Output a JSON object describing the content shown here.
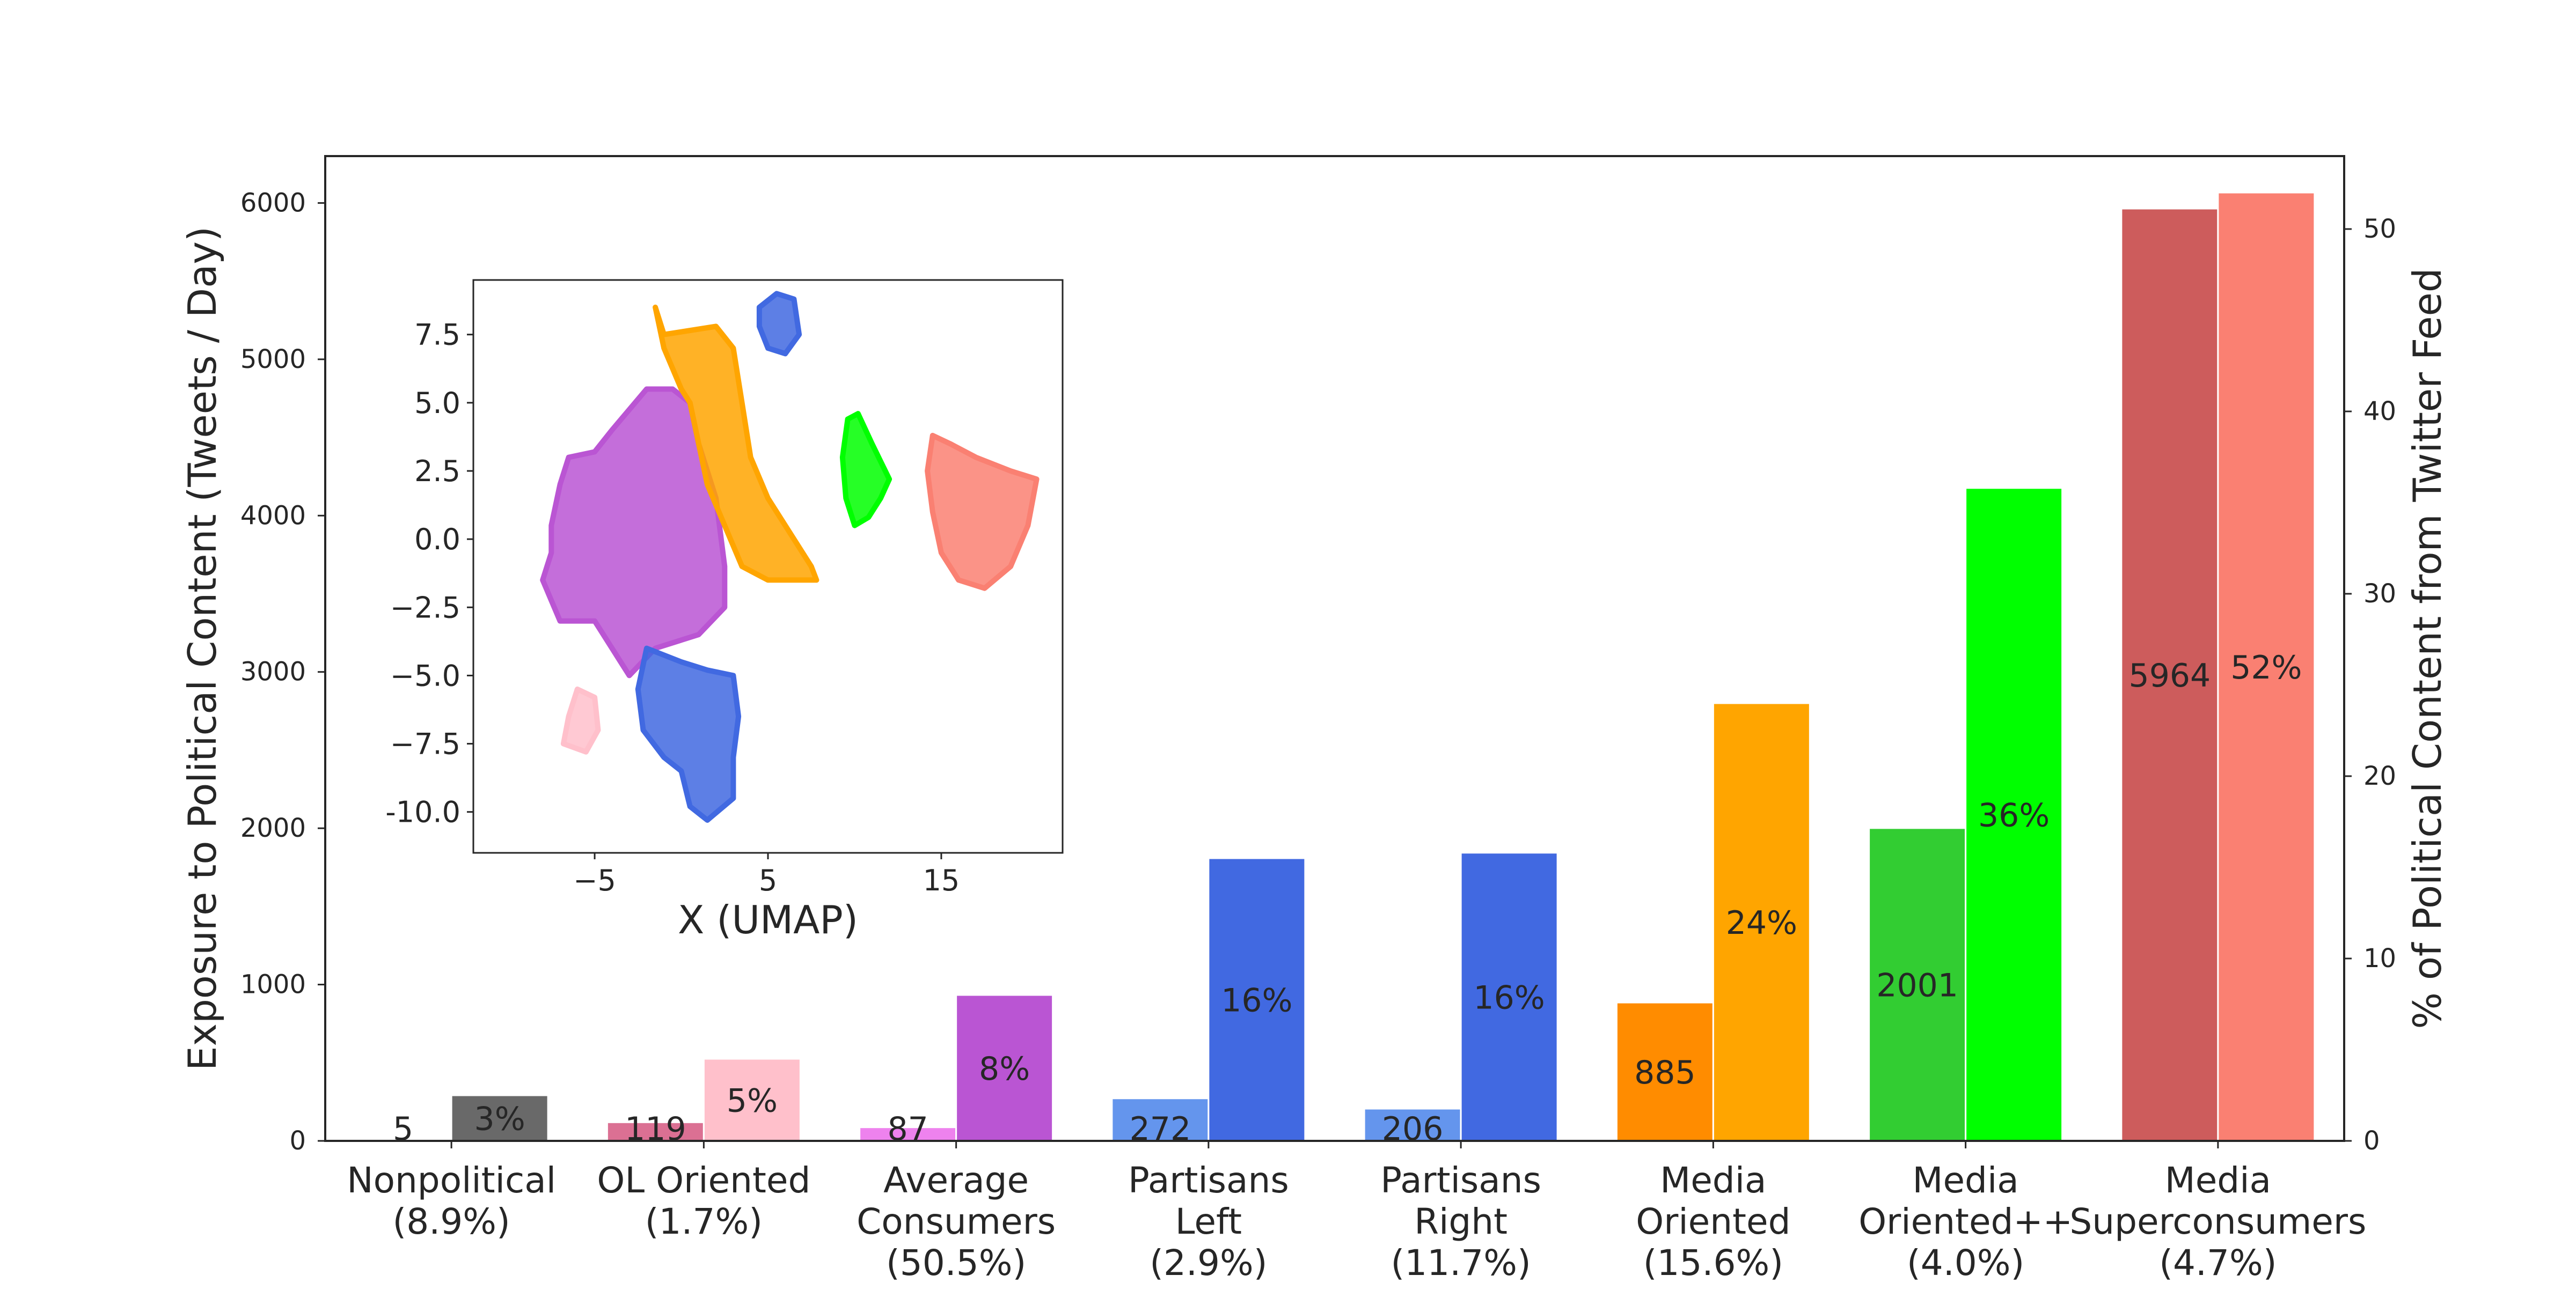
{
  "chart_data": [
    {
      "type": "bar",
      "categories": [
        "Nonpolitical\n(8.9%)",
        "OL Oriented\n(1.7%)",
        "Average\nConsumers\n(50.5%)",
        "Partisans\nLeft\n(2.9%)",
        "Partisans\nRight\n(11.7%)",
        "Media\nOriented\n(15.6%)",
        "Media\nOriented++\n(4.0%)",
        "Media\nSuperconsumers\n(4.7%)"
      ],
      "ylabel": "Exposure to Political Content (Tweets / Day)",
      "y2label": "% of Political Content from Twitter Feed",
      "ylim": [
        0,
        6300
      ],
      "y2lim": [
        0,
        54
      ],
      "yticks": [
        "0",
        "1000",
        "2000",
        "3000",
        "4000",
        "5000",
        "6000"
      ],
      "y2ticks": [
        "0",
        "10",
        "20",
        "30",
        "40",
        "50"
      ],
      "series": [
        {
          "axis": "left",
          "values": [
            5,
            119,
            87,
            272,
            206,
            885,
            2001,
            5964
          ],
          "labels": [
            "5",
            "119",
            "87",
            "272",
            "206",
            "885",
            "2001",
            "5964"
          ],
          "colors": [
            "#808080",
            "#db7093",
            "#ee82ee",
            "#6495ed",
            "#6495ed",
            "#ff8c00",
            "#32cd32",
            "#cd5c5c"
          ]
        },
        {
          "axis": "right",
          "values": [
            2.5,
            4.5,
            8,
            15.5,
            15.8,
            24,
            35.8,
            52
          ],
          "labels": [
            "3%",
            "5%",
            "8%",
            "16%",
            "16%",
            "24%",
            "36%",
            "52%"
          ],
          "colors": [
            "#696969",
            "#ffc0cb",
            "#ba55d3",
            "#4169e1",
            "#4169e1",
            "#ffa500",
            "#00ff00",
            "#fa8072"
          ]
        }
      ],
      "grid": false,
      "legend": "none"
    },
    {
      "type": "scatter",
      "xlabel": "X (UMAP)",
      "ylabel": "",
      "xlim": [
        -12,
        22
      ],
      "ylim": [
        -11.5,
        9.5
      ],
      "xticks": [
        "−5",
        "5",
        "15"
      ],
      "yticks": [
        "7.5",
        "5.0",
        "2.5",
        "0.0",
        "−2.5",
        "−5.0",
        "−7.5",
        "-10.0"
      ],
      "clusters": [
        {
          "color": "#ba55d3",
          "shape": [
            [
              -7.5,
              0.5
            ],
            [
              -7,
              2
            ],
            [
              -6.5,
              3
            ],
            [
              -5,
              3.2
            ],
            [
              -4,
              4
            ],
            [
              -2,
              5.5
            ],
            [
              -0.5,
              5.5
            ],
            [
              0.5,
              5
            ],
            [
              1,
              3.5
            ],
            [
              2,
              1.5
            ],
            [
              2.5,
              -1
            ],
            [
              2.5,
              -2.5
            ],
            [
              1,
              -3.5
            ],
            [
              -1.5,
              -4
            ],
            [
              -3,
              -5
            ],
            [
              -5,
              -3
            ],
            [
              -7,
              -3
            ],
            [
              -8,
              -1.5
            ],
            [
              -7.5,
              -0.5
            ]
          ]
        },
        {
          "color": "#ffa500",
          "shape": [
            [
              -1.5,
              8.5
            ],
            [
              -1,
              7.5
            ],
            [
              2,
              7.8
            ],
            [
              3,
              7
            ],
            [
              3.5,
              5
            ],
            [
              4,
              3
            ],
            [
              5,
              1.5
            ],
            [
              7.5,
              -1
            ],
            [
              7.8,
              -1.5
            ],
            [
              5,
              -1.5
            ],
            [
              3.5,
              -1
            ],
            [
              2.5,
              0.5
            ],
            [
              1.5,
              2
            ],
            [
              1,
              3.5
            ],
            [
              0.5,
              5
            ],
            [
              0,
              5.5
            ],
            [
              -1,
              7
            ]
          ]
        },
        {
          "color": "#4169e1",
          "shape": [
            [
              4.5,
              8.5
            ],
            [
              5.5,
              9
            ],
            [
              6.5,
              8.8
            ],
            [
              6.8,
              7.5
            ],
            [
              6,
              6.8
            ],
            [
              5,
              7
            ],
            [
              4.5,
              7.8
            ]
          ]
        },
        {
          "color": "#00ff00",
          "shape": [
            [
              9.6,
              4.4
            ],
            [
              10.2,
              4.6
            ],
            [
              11,
              3.5
            ],
            [
              12,
              2.2
            ],
            [
              11.5,
              1.5
            ],
            [
              10.8,
              0.8
            ],
            [
              10,
              0.5
            ],
            [
              9.5,
              1.5
            ],
            [
              9.3,
              3
            ]
          ]
        },
        {
          "color": "#fa8072",
          "shape": [
            [
              14.5,
              3.8
            ],
            [
              15.5,
              3.5
            ],
            [
              17,
              3
            ],
            [
              19,
              2.5
            ],
            [
              20.5,
              2.2
            ],
            [
              20,
              0.5
            ],
            [
              19,
              -1
            ],
            [
              17.5,
              -1.8
            ],
            [
              16,
              -1.5
            ],
            [
              15,
              -0.5
            ],
            [
              14.5,
              1
            ],
            [
              14.2,
              2.5
            ]
          ]
        },
        {
          "color": "#4169e1",
          "shape": [
            [
              -2,
              -4
            ],
            [
              0,
              -4.5
            ],
            [
              1.5,
              -4.8
            ],
            [
              3,
              -5
            ],
            [
              3.3,
              -6.5
            ],
            [
              3,
              -8
            ],
            [
              3,
              -9.5
            ],
            [
              1.5,
              -10.3
            ],
            [
              0.5,
              -9.8
            ],
            [
              0,
              -8.5
            ],
            [
              -1,
              -8
            ],
            [
              -2.2,
              -7
            ],
            [
              -2.5,
              -5.5
            ]
          ]
        },
        {
          "color": "#ffc0cb",
          "shape": [
            [
              -6,
              -5.5
            ],
            [
              -5,
              -5.8
            ],
            [
              -4.8,
              -7
            ],
            [
              -5.5,
              -7.8
            ],
            [
              -6.8,
              -7.5
            ],
            [
              -6.5,
              -6.5
            ]
          ]
        }
      ]
    }
  ]
}
